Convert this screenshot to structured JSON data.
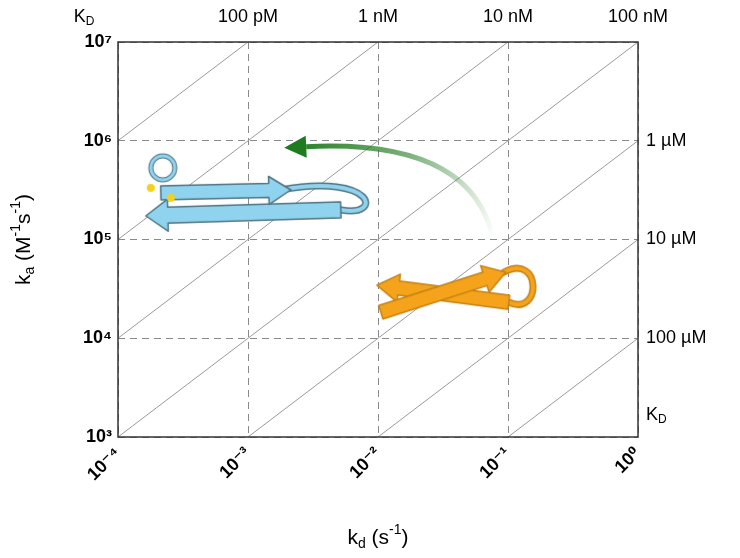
{
  "chart_data": {
    "type": "scatter",
    "x_label": "kd (s-1)",
    "y_label": "ka (M-1s-1)",
    "log": true,
    "grid": true,
    "xlim": [
      0.0001,
      1
    ],
    "ylim": [
      1000,
      10000000
    ],
    "xticks": [
      {
        "value": 0.0001,
        "label": "10⁻⁴"
      },
      {
        "value": 0.001,
        "label": "10⁻³"
      },
      {
        "value": 0.01,
        "label": "10⁻²"
      },
      {
        "value": 0.1,
        "label": "10⁻¹"
      },
      {
        "value": 1,
        "label": "10⁰"
      }
    ],
    "yticks": [
      {
        "value": 1000,
        "label": "10³"
      },
      {
        "value": 10000,
        "label": "10⁴"
      },
      {
        "value": 100000,
        "label": "10⁵"
      },
      {
        "value": 1000000,
        "label": "10⁶"
      },
      {
        "value": 10000000,
        "label": "10⁷"
      }
    ],
    "iso_affinity": {
      "title": "KD",
      "lines": [
        {
          "value": 1e-10,
          "label": "100 pM"
        },
        {
          "value": 1e-09,
          "label": "1 nM"
        },
        {
          "value": 1e-08,
          "label": "10 nM"
        },
        {
          "value": 1e-07,
          "label": "100 nM"
        },
        {
          "value": 1e-06,
          "label": "1 µM"
        },
        {
          "value": 1e-05,
          "label": "10 µM"
        },
        {
          "value": 0.0001,
          "label": "100 µM"
        }
      ]
    },
    "series": [
      {
        "color": "#f5a31a",
        "marker": "hairpin",
        "x": [
          0.04
        ],
        "values": [
          31000
        ]
      },
      {
        "color": "#8fd3ee",
        "marker": "cyclic_hairpin",
        "x": [
          0.0012
        ],
        "values": [
          280000
        ]
      }
    ],
    "arrow": {
      "from": [
        0.077,
        100000
      ],
      "to": [
        0.0019,
        850000
      ],
      "color": "#1e7b1e"
    }
  }
}
